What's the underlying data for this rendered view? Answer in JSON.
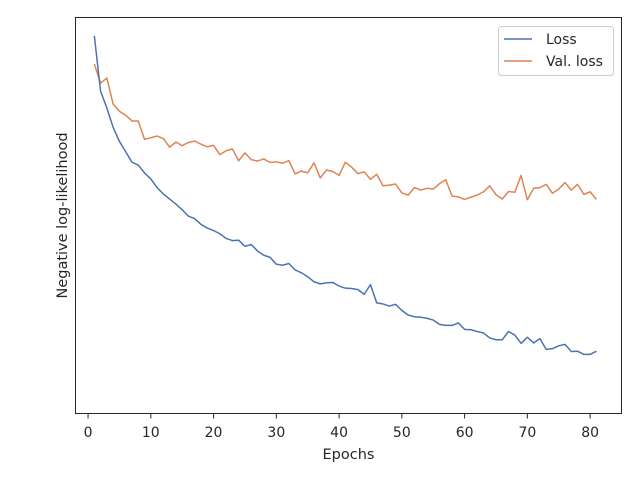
{
  "chart_data": {
    "type": "line",
    "xlabel": "Epochs",
    "ylabel": "Negative log-likelihood",
    "xlim": [
      -2.0,
      85.0
    ],
    "ylim": [
      0,
      100
    ],
    "y_ticks_shown": false,
    "x_ticks": [
      0,
      10,
      20,
      30,
      40,
      50,
      60,
      70,
      80
    ],
    "grid": false,
    "legend_position": "top-right",
    "x": [
      1,
      2,
      3,
      4,
      5,
      6,
      7,
      8,
      9,
      10,
      11,
      12,
      13,
      14,
      15,
      16,
      17,
      18,
      19,
      20,
      21,
      22,
      23,
      24,
      25,
      26,
      27,
      28,
      29,
      30,
      31,
      32,
      33,
      34,
      35,
      36,
      37,
      38,
      39,
      40,
      41,
      42,
      43,
      44,
      45,
      46,
      47,
      48,
      49,
      50,
      51,
      52,
      53,
      54,
      55,
      56,
      57,
      58,
      59,
      60,
      61,
      62,
      63,
      64,
      65,
      66,
      67,
      68,
      69,
      70,
      71,
      72,
      73,
      74,
      75,
      76,
      77,
      78,
      79,
      80,
      81
    ],
    "series": [
      {
        "name": "Loss",
        "color": "#4c72b0",
        "values": [
          99.5,
          84.0,
          79.3,
          73.9,
          70.0,
          67.1,
          64.2,
          63.4,
          61.2,
          59.5,
          57.1,
          55.3,
          53.9,
          52.5,
          50.9,
          49.1,
          48.4,
          46.8,
          45.8,
          45.1,
          44.2,
          42.9,
          42.3,
          42.4,
          40.7,
          41.2,
          39.4,
          38.2,
          37.6,
          35.7,
          35.4,
          35.9,
          34.1,
          33.3,
          32.2,
          30.8,
          30.2,
          30.5,
          30.6,
          29.6,
          29.0,
          28.9,
          28.6,
          27.3,
          30.0,
          24.9,
          24.6,
          24.0,
          24.5,
          22.8,
          21.5,
          21.0,
          20.9,
          20.6,
          20.1,
          18.9,
          18.6,
          18.6,
          19.3,
          17.5,
          17.4,
          16.9,
          16.5,
          15.1,
          14.6,
          14.6,
          16.9,
          15.9,
          13.6,
          15.3,
          13.7,
          14.9,
          11.9,
          12.1,
          12.9,
          13.3,
          11.3,
          11.4,
          10.5,
          10.5,
          11.4
        ]
      },
      {
        "name": "Val. loss",
        "color": "#dd8452",
        "values": [
          91.6,
          86.3,
          87.7,
          80.4,
          78.4,
          77.3,
          75.7,
          75.7,
          70.6,
          71.0,
          71.5,
          70.8,
          68.4,
          69.8,
          68.8,
          69.7,
          70.1,
          69.2,
          68.5,
          68.9,
          66.3,
          67.4,
          67.9,
          64.6,
          66.8,
          64.9,
          64.5,
          65.1,
          64.1,
          64.3,
          63.9,
          64.6,
          60.9,
          61.7,
          61.2,
          64.0,
          59.8,
          62.0,
          61.6,
          60.5,
          64.2,
          62.8,
          61.0,
          61.5,
          59.4,
          60.8,
          57.6,
          57.8,
          58.1,
          55.6,
          55.0,
          57.1,
          56.4,
          56.9,
          56.7,
          58.2,
          59.3,
          54.7,
          54.5,
          53.8,
          54.4,
          55.0,
          55.9,
          57.6,
          55.1,
          53.9,
          56.0,
          55.8,
          60.5,
          53.7,
          56.9,
          57.1,
          58.0,
          55.5,
          56.7,
          58.5,
          56.4,
          58.0,
          55.2,
          55.9,
          53.8
        ]
      }
    ]
  }
}
